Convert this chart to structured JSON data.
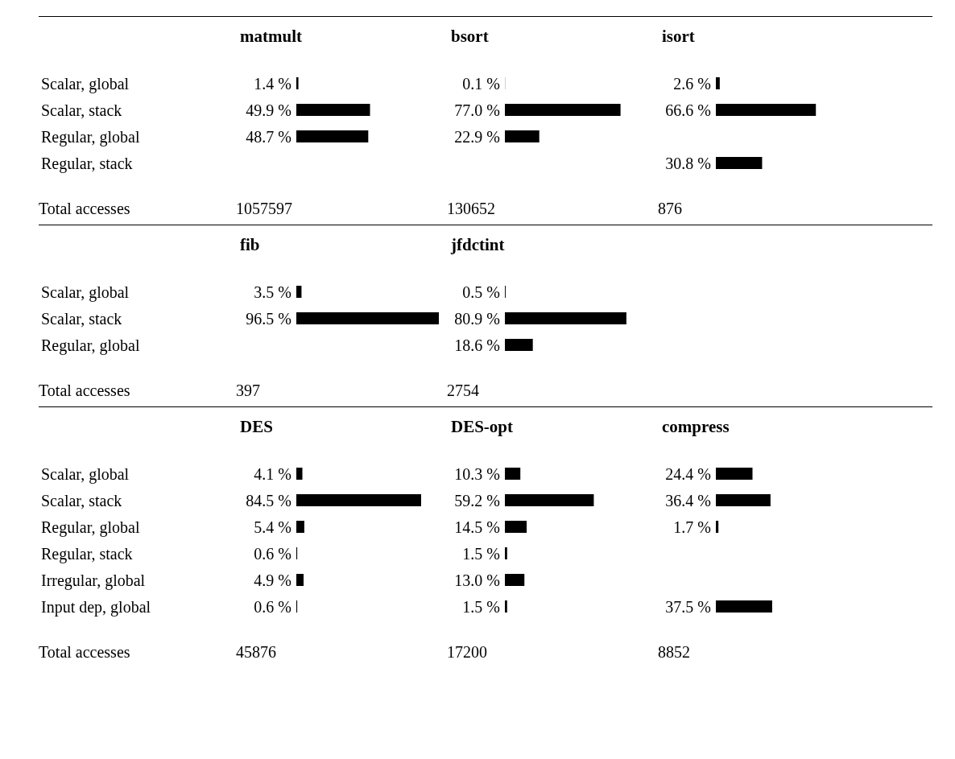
{
  "chart_data": [
    {
      "type": "bar",
      "orientation": "horizontal",
      "title": "matmult",
      "tick_labels": "y",
      "color": "#000000",
      "categories": [
        "Scalar, global",
        "Scalar, stack",
        "Regular, global",
        "Regular, stack"
      ],
      "values": [
        1.4,
        49.9,
        48.7,
        null
      ],
      "value_labels": [
        "1.4 %",
        "49.9 %",
        "48.7 %",
        null
      ],
      "annotations": [
        "Total accesses",
        "1057597"
      ]
    },
    {
      "type": "bar",
      "orientation": "horizontal",
      "title": "bsort",
      "tick_labels": false,
      "color": "#000000",
      "categories": [
        null,
        null,
        null,
        null
      ],
      "values": [
        0.1,
        77.0,
        22.9,
        null
      ],
      "value_labels": [
        "0.1 %",
        "77.0 %",
        "22.9 %",
        null
      ],
      "annotations": [
        "130652"
      ]
    },
    {
      "type": "bar",
      "orientation": "horizontal",
      "title": "isort",
      "tick_labels": false,
      "color": "#000000",
      "categories": [
        null,
        null,
        null,
        null
      ],
      "values": [
        2.6,
        66.6,
        null,
        30.8
      ],
      "value_labels": [
        "2.6 %",
        "66.6 %",
        null,
        "30.8 %"
      ],
      "annotations": [
        "876"
      ]
    },
    {
      "type": "bar",
      "orientation": "horizontal",
      "title": "fib",
      "tick_labels": "y",
      "color": "#000000",
      "categories": [
        "Scalar, global",
        "Scalar, stack",
        "Regular, global"
      ],
      "values": [
        3.5,
        96.5,
        null
      ],
      "value_labels": [
        "3.5 %",
        "96.5 %",
        null
      ],
      "annotations": [
        "Total accesses",
        "397"
      ]
    },
    {
      "type": "bar",
      "orientation": "horizontal",
      "title": "jfdctint",
      "tick_labels": false,
      "color": "#000000",
      "categories": [
        null,
        null,
        null
      ],
      "values": [
        0.5,
        80.9,
        18.6
      ],
      "value_labels": [
        "0.5 %",
        "80.9 %",
        "18.6 %"
      ],
      "annotations": [
        "2754"
      ]
    },
    {
      "type": "bar",
      "orientation": "horizontal",
      "title": "DES",
      "tick_labels": "y",
      "color": "#000000",
      "categories": [
        "Scalar, global",
        "Scalar, stack",
        "Regular, global",
        "Regular, stack",
        "Irregular, global",
        "Input dep, global"
      ],
      "values": [
        4.1,
        84.5,
        5.4,
        0.6,
        4.9,
        0.6
      ],
      "value_labels": [
        "4.1 %",
        "84.5 %",
        "5.4 %",
        "0.6 %",
        "4.9 %",
        "0.6 %"
      ],
      "annotations": [
        "Total accesses",
        "45876"
      ]
    },
    {
      "type": "bar",
      "orientation": "horizontal",
      "title": "DES-opt",
      "tick_labels": false,
      "color": "#000000",
      "categories": [
        null,
        null,
        null,
        null,
        null,
        null
      ],
      "values": [
        10.3,
        59.2,
        14.5,
        1.5,
        13.0,
        1.5
      ],
      "value_labels": [
        "10.3 %",
        "59.2 %",
        "14.5 %",
        "1.5 %",
        "13.0 %",
        "1.5 %"
      ],
      "annotations": [
        "17200"
      ]
    },
    {
      "type": "bar",
      "orientation": "horizontal",
      "title": "compress",
      "tick_labels": false,
      "color": "#000000",
      "categories": [
        null,
        null,
        null,
        null,
        null,
        null
      ],
      "values": [
        24.4,
        36.4,
        1.7,
        null,
        null,
        37.5
      ],
      "value_labels": [
        "24.4 %",
        "36.4 %",
        "1.7 %",
        null,
        null,
        "37.5 %"
      ],
      "annotations": [
        "8852"
      ]
    }
  ]
}
